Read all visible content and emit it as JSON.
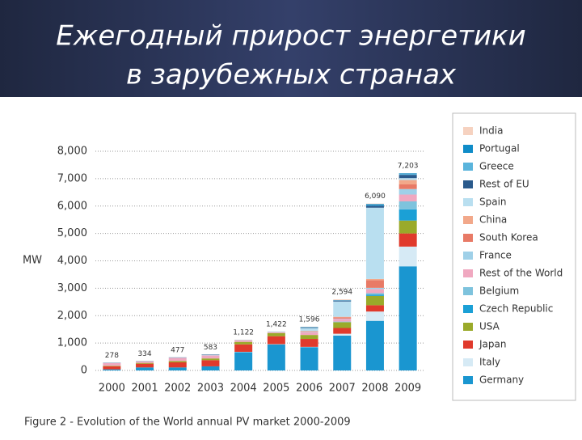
{
  "slide": {
    "title": [
      "Ежегодный прирост энергетики",
      "в зарубежных странах"
    ]
  },
  "chart_data": {
    "type": "stacked_bar",
    "ylabel": "MW",
    "caption": "Figure 2 - Evolution of the World annual PV market 2000-2009",
    "categories": [
      "2000",
      "2001",
      "2002",
      "2003",
      "2004",
      "2005",
      "2006",
      "2007",
      "2008",
      "2009"
    ],
    "ylim": [
      0,
      8000
    ],
    "yticks": [
      0,
      {
        "value": 1000,
        "label": "1,000"
      },
      {
        "value": 2000,
        "label": "2,000"
      },
      {
        "value": 3000,
        "label": "3,000"
      },
      {
        "value": 4000,
        "label": "4,000"
      },
      {
        "value": 5000,
        "label": "5,000"
      },
      {
        "value": 6000,
        "label": "6,000"
      },
      {
        "value": 7000,
        "label": "7,000"
      },
      {
        "value": 8000,
        "label": "8,000"
      }
    ],
    "grid": true,
    "legend": "right",
    "totals": [
      278,
      334,
      477,
      583,
      1122,
      1422,
      1596,
      2594,
      6090,
      7203
    ],
    "total_labels": [
      "278",
      "334",
      "477",
      "583",
      "1,122",
      "1,422",
      "1,596",
      "2,594",
      "6,090",
      "7,203"
    ],
    "series": [
      {
        "name": "Germany",
        "color": "#1a96d0",
        "values": [
          40,
          110,
          110,
          150,
          670,
          950,
          850,
          1270,
          1810,
          3800
        ]
      },
      {
        "name": "Italy",
        "color": "#d6eaf5",
        "values": [
          0,
          0,
          0,
          0,
          10,
          10,
          10,
          70,
          340,
          720
        ]
      },
      {
        "name": "Japan",
        "color": "#e03a2c",
        "values": [
          112,
          135,
          185,
          223,
          272,
          290,
          290,
          210,
          230,
          480
        ]
      },
      {
        "name": "USA",
        "color": "#9aaa2a",
        "values": [
          20,
          30,
          45,
          65,
          90,
          115,
          145,
          210,
          340,
          470
        ]
      },
      {
        "name": "Czech Republic",
        "color": "#1ba0d6",
        "values": [
          0,
          0,
          0,
          0,
          0,
          0,
          0,
          3,
          50,
          410
        ]
      },
      {
        "name": "Belgium",
        "color": "#7ec3dd",
        "values": [
          0,
          0,
          0,
          0,
          0,
          0,
          0,
          20,
          50,
          290
        ]
      },
      {
        "name": "Rest of the World",
        "color": "#f0a8c0",
        "values": [
          96,
          49,
          117,
          110,
          50,
          30,
          100,
          100,
          150,
          250
        ]
      },
      {
        "name": "France",
        "color": "#9fd0e8",
        "values": [
          0,
          0,
          0,
          10,
          10,
          10,
          15,
          10,
          45,
          200
        ]
      },
      {
        "name": "South Korea",
        "color": "#e87a66",
        "values": [
          0,
          0,
          0,
          0,
          10,
          5,
          20,
          45,
          280,
          170
        ]
      },
      {
        "name": "China",
        "color": "#f2a88a",
        "values": [
          0,
          0,
          0,
          0,
          0,
          0,
          10,
          20,
          45,
          160
        ]
      },
      {
        "name": "Spain",
        "color": "#b9dff0",
        "values": [
          0,
          0,
          10,
          10,
          10,
          10,
          100,
          560,
          2600,
          70
        ]
      },
      {
        "name": "Rest of EU",
        "color": "#2a5a8c",
        "values": [
          10,
          10,
          10,
          15,
          0,
          2,
          16,
          30,
          70,
          120
        ]
      },
      {
        "name": "Greece",
        "color": "#5ab4dc",
        "values": [
          0,
          0,
          0,
          0,
          0,
          0,
          5,
          2,
          10,
          40
        ]
      },
      {
        "name": "Portugal",
        "color": "#0f8cc8",
        "values": [
          0,
          0,
          0,
          0,
          0,
          0,
          20,
          14,
          50,
          20
        ]
      },
      {
        "name": "India",
        "color": "#f6d2c0",
        "values": [
          0,
          0,
          0,
          0,
          0,
          0,
          15,
          30,
          20,
          3
        ]
      }
    ]
  }
}
